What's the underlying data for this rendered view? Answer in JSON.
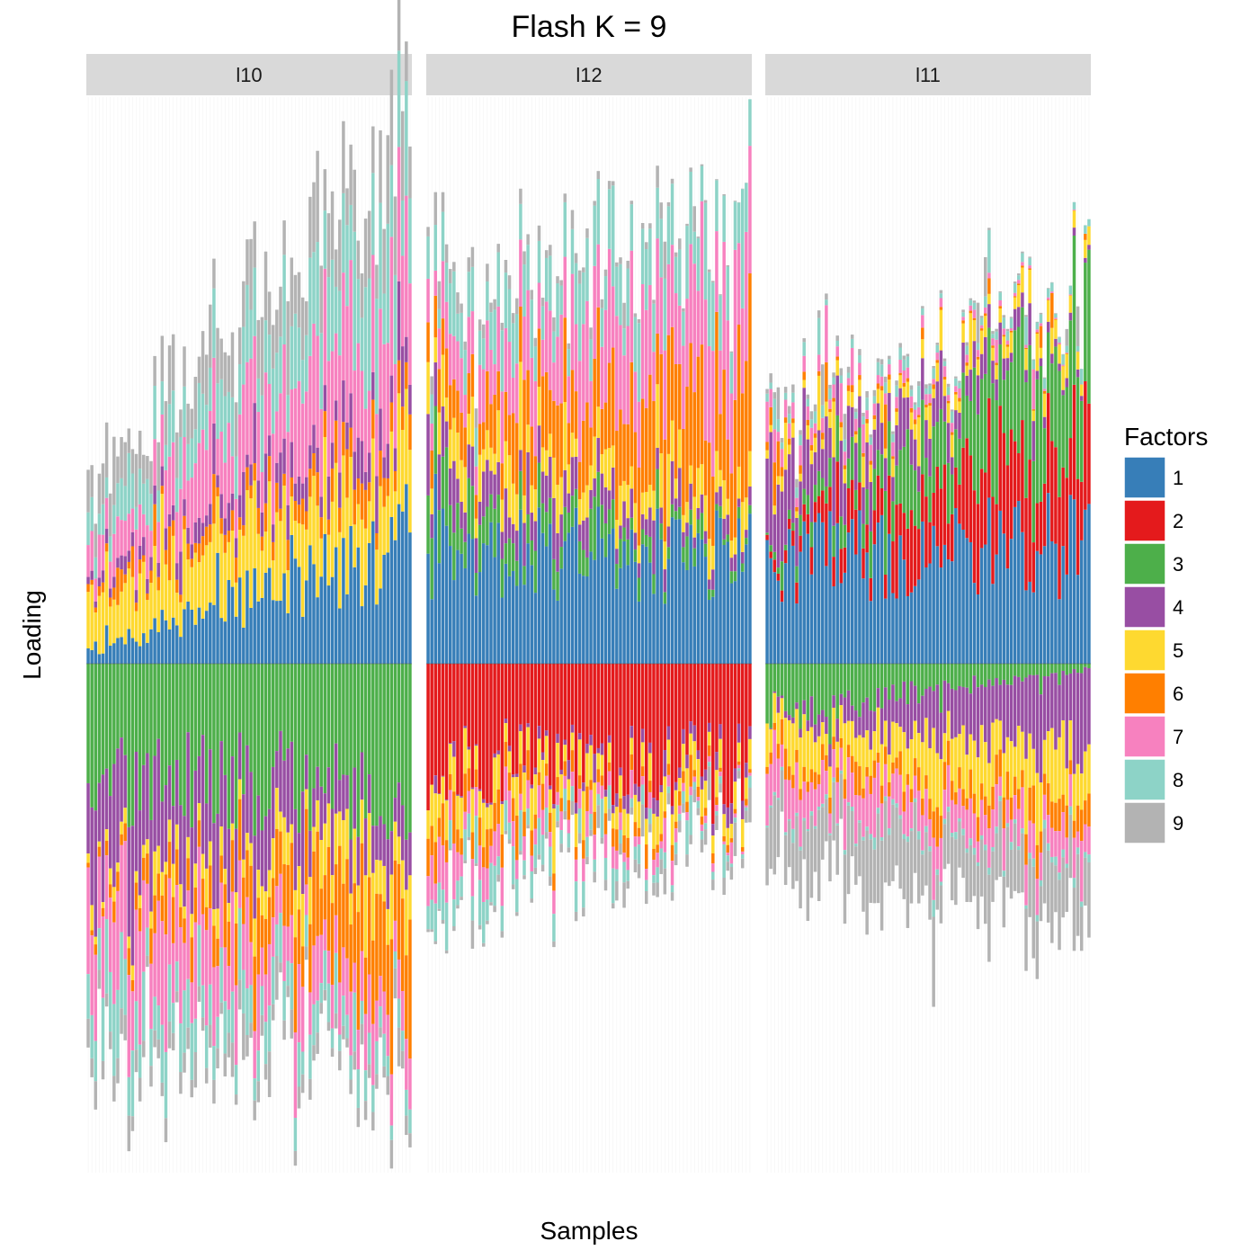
{
  "chart_data": {
    "type": "bar",
    "title": "Flash K = 9",
    "xlabel": "Samples",
    "ylabel": "Loading",
    "stacked": true,
    "diverging": true,
    "grid": false,
    "x_tick_labels": false,
    "y_tick_labels": false,
    "legend": {
      "title": "Factors",
      "placement": "right",
      "entries": [
        "1",
        "2",
        "3",
        "4",
        "5",
        "6",
        "7",
        "8",
        "9"
      ]
    },
    "colors": {
      "1": "#377eb8",
      "2": "#e41a1c",
      "3": "#4daf4a",
      "4": "#984ea3",
      "5": "#fed930",
      "6": "#ff7f00",
      "7": "#f781bf",
      "8": "#8dd3c7",
      "9": "#b3b3b3"
    },
    "facets": [
      {
        "label": "l10",
        "n_samples": 88,
        "approx_positive_segments": [
          {
            "factor": "1",
            "start": 0.4,
            "end": 3.5
          },
          {
            "factor": "5",
            "start": 1.5,
            "end": 2.2
          },
          {
            "factor": "6",
            "start": 0.2,
            "end": 0.9
          },
          {
            "factor": "4",
            "start": 0.3,
            "end": 1.0
          },
          {
            "factor": "7",
            "start": 0.8,
            "end": 3.2
          },
          {
            "factor": "8",
            "start": 0.8,
            "end": 2.6
          },
          {
            "factor": "9",
            "start": 1.0,
            "end": 1.9
          }
        ],
        "approx_negative_segments": [
          {
            "factor": "3",
            "start": 4.8,
            "end": 5.4
          },
          {
            "factor": "4",
            "start": 4.1,
            "end": 1.6
          },
          {
            "factor": "5",
            "start": 0.3,
            "end": 2.1
          },
          {
            "factor": "6",
            "start": 0.3,
            "end": 4.3
          },
          {
            "factor": "7",
            "start": 3.8,
            "end": 1.6
          },
          {
            "factor": "8",
            "start": 2.4,
            "end": 0.9
          },
          {
            "factor": "9",
            "start": 0.9,
            "end": 0.6
          }
        ]
      },
      {
        "label": "l12",
        "n_samples": 88,
        "approx_positive_segments": [
          {
            "factor": "1",
            "start": 3.2,
            "end": 3.2
          },
          {
            "factor": "3",
            "start": 1.3,
            "end": 0.2
          },
          {
            "factor": "4",
            "start": 1.2,
            "end": 0.4
          },
          {
            "factor": "5",
            "start": 1.1,
            "end": 0.8
          },
          {
            "factor": "6",
            "start": 0.9,
            "end": 3.1
          },
          {
            "factor": "7",
            "start": 1.1,
            "end": 3.3
          },
          {
            "factor": "8",
            "start": 1.0,
            "end": 1.7
          },
          {
            "factor": "9",
            "start": 0.5,
            "end": 0.0
          }
        ],
        "approx_negative_segments": [
          {
            "factor": "2",
            "start": 4.2,
            "end": 4.5
          },
          {
            "factor": "4",
            "start": 0.0,
            "end": 0.7
          },
          {
            "factor": "5",
            "start": 1.5,
            "end": 0.9
          },
          {
            "factor": "6",
            "start": 1.3,
            "end": 0.2
          },
          {
            "factor": "7",
            "start": 1.5,
            "end": 0.1
          },
          {
            "factor": "8",
            "start": 1.6,
            "end": 0.1
          },
          {
            "factor": "9",
            "start": 0.1,
            "end": 0.6
          }
        ]
      },
      {
        "label": "l11",
        "n_samples": 88,
        "approx_positive_segments": [
          {
            "factor": "1",
            "start": 3.2,
            "end": 3.5
          },
          {
            "factor": "2",
            "start": 0.2,
            "end": 3.0
          },
          {
            "factor": "3",
            "start": 0.1,
            "end": 3.3
          },
          {
            "factor": "4",
            "start": 1.8,
            "end": 0.1
          },
          {
            "factor": "5",
            "start": 0.3,
            "end": 0.6
          },
          {
            "factor": "6",
            "start": 0.2,
            "end": 0.0
          },
          {
            "factor": "7",
            "start": 0.5,
            "end": 0.0
          },
          {
            "factor": "8",
            "start": 0.3,
            "end": 0.2
          },
          {
            "factor": "9",
            "start": 0.2,
            "end": 0.0
          }
        ],
        "approx_negative_segments": [
          {
            "factor": "3",
            "start": 2.2,
            "end": 0.2
          },
          {
            "factor": "4",
            "start": 0.0,
            "end": 3.7
          },
          {
            "factor": "5",
            "start": 1.5,
            "end": 2.3
          },
          {
            "factor": "6",
            "start": 0.5,
            "end": 1.1
          },
          {
            "factor": "7",
            "start": 1.6,
            "end": 1.2
          },
          {
            "factor": "8",
            "start": 0.1,
            "end": 0.3
          },
          {
            "factor": "9",
            "start": 2.8,
            "end": 2.5
          }
        ]
      }
    ]
  }
}
